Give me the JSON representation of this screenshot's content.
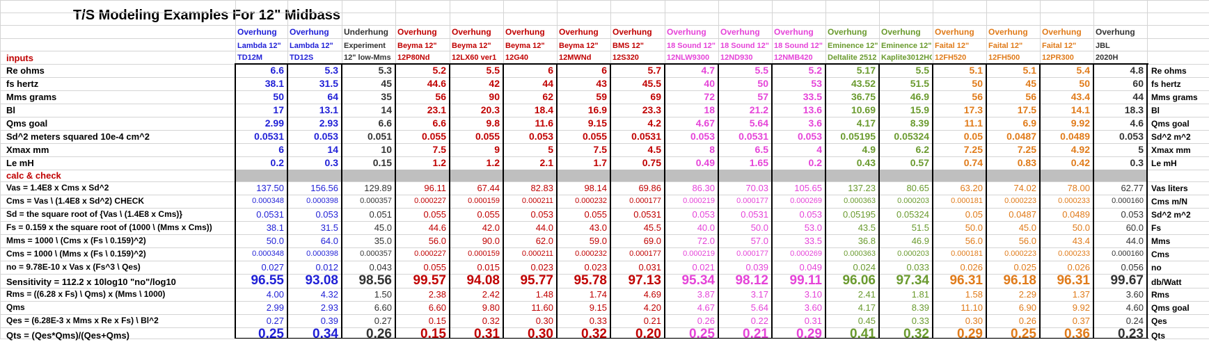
{
  "title": "T/S Modeling Examples For  12\" Midbass",
  "sections": {
    "inputs": "inputs",
    "calc": "calc  &  check"
  },
  "colors": {
    "blue": "#1f1fd6",
    "gray": "#333333",
    "red": "#c00000",
    "pink": "#e544d8",
    "olive": "#6a9a2e",
    "orange": "#e07b1a"
  },
  "columns": [
    {
      "type": "Overhung",
      "brand": "Lambda 12\"",
      "model": "TD12M",
      "color": "blue"
    },
    {
      "type": "Overhung",
      "brand": "Lambda 12\"",
      "model": "TD12S",
      "color": "blue"
    },
    {
      "type": "Underhung",
      "brand": "Experiment",
      "model": "12\"  low-Mms",
      "color": "gray"
    },
    {
      "type": "Overhung",
      "brand": "Beyma  12\"",
      "model": "12P80Nd",
      "color": "red"
    },
    {
      "type": "Overhung",
      "brand": "Beyma  12\"",
      "model": "12LX60 ver1",
      "color": "red"
    },
    {
      "type": "Overhung",
      "brand": "Beyma  12\"",
      "model": "12G40",
      "color": "red"
    },
    {
      "type": "Overhung",
      "brand": "Beyma  12\"",
      "model": "12MWNd",
      "color": "red"
    },
    {
      "type": "Overhung",
      "brand": "BMS 12\"",
      "model": "12S320",
      "color": "red"
    },
    {
      "type": "Overhung",
      "brand": "18 Sound 12\"",
      "model": "12NLW9300",
      "color": "pink"
    },
    {
      "type": "Overhung",
      "brand": "18 Sound 12\"",
      "model": "12ND930",
      "color": "pink"
    },
    {
      "type": "Overhung",
      "brand": "18 Sound 12\"",
      "model": "12NMB420",
      "color": "pink"
    },
    {
      "type": "Overhung",
      "brand": "Eminence 12\"",
      "model": "Deltalite 2512",
      "color": "olive"
    },
    {
      "type": "Overhung",
      "brand": "Eminence 12\"",
      "model": "Kaplite3012HC",
      "color": "olive"
    },
    {
      "type": "Overhung",
      "brand": "Faital 12\"",
      "model": "12FH520",
      "color": "orange"
    },
    {
      "type": "Overhung",
      "brand": "Faital 12\"",
      "model": "12FH500",
      "color": "orange"
    },
    {
      "type": "Overhung",
      "brand": "Faital 12\"",
      "model": "12PR300",
      "color": "orange"
    },
    {
      "type": "Overhung",
      "brand": "JBL",
      "model": "2020H",
      "color": "gray"
    }
  ],
  "input_rows": [
    {
      "label": "Re ohms",
      "right": "Re ohms",
      "values": [
        "6.6",
        "5.3",
        "5.3",
        "5.2",
        "5.5",
        "6",
        "6",
        "5.7",
        "4.7",
        "5.5",
        "5.2",
        "5.17",
        "5.5",
        "5.1",
        "5.1",
        "5.4",
        "4.8"
      ]
    },
    {
      "label": "fs   hertz",
      "right": "fs   hertz",
      "values": [
        "38.1",
        "31.5",
        "45",
        "44.6",
        "42",
        "44",
        "43",
        "45.5",
        "40",
        "50",
        "53",
        "43.52",
        "51.5",
        "50",
        "45",
        "50",
        "60"
      ]
    },
    {
      "label": "Mms  grams",
      "right": "Mms  grams",
      "values": [
        "50",
        "64",
        "35",
        "56",
        "90",
        "62",
        "59",
        "69",
        "72",
        "57",
        "33.5",
        "36.75",
        "46.9",
        "56",
        "56",
        "43.4",
        "44"
      ]
    },
    {
      "label": "Bl",
      "right": "Bl",
      "values": [
        "17",
        "13.1",
        "14",
        "23.1",
        "20.3",
        "18.4",
        "16.9",
        "23.3",
        "18",
        "21.2",
        "13.6",
        "10.69",
        "15.9",
        "17.3",
        "17.5",
        "14.1",
        "18.3"
      ]
    },
    {
      "label": "Qms goal",
      "right": "Qms goal",
      "values": [
        "2.99",
        "2.93",
        "6.6",
        "6.6",
        "9.8",
        "11.6",
        "9.15",
        "4.2",
        "4.67",
        "5.64",
        "3.6",
        "4.17",
        "8.39",
        "11.1",
        "6.9",
        "9.92",
        "4.6"
      ]
    },
    {
      "label": "Sd^2   meters squared 10e-4 cm^2",
      "right": "Sd^2   m^2",
      "values": [
        "0.0531",
        "0.053",
        "0.051",
        "0.055",
        "0.055",
        "0.053",
        "0.055",
        "0.0531",
        "0.053",
        "0.0531",
        "0.053",
        "0.05195",
        "0.05324",
        "0.05",
        "0.0487",
        "0.0489",
        "0.053"
      ]
    },
    {
      "label": "Xmax   mm",
      "right": "Xmax   mm",
      "values": [
        "6",
        "14",
        "10",
        "7.5",
        "9",
        "5",
        "7.5",
        "4.5",
        "8",
        "6.5",
        "4",
        "4.9",
        "6.2",
        "7.25",
        "7.25",
        "4.92",
        "5"
      ]
    },
    {
      "label": "Le  mH",
      "right": "Le mH",
      "values": [
        "0.2",
        "0.3",
        "0.15",
        "1.2",
        "1.2",
        "2.1",
        "1.7",
        "0.75",
        "0.49",
        "1.65",
        "0.2",
        "0.43",
        "0.57",
        "0.74",
        "0.83",
        "0.42",
        "0.3"
      ]
    }
  ],
  "calc_rows": [
    {
      "label": "Vas = 1.4E8 x Cms x Sd^2",
      "right": "Vas  liters",
      "big": false,
      "values": [
        "137.50",
        "156.56",
        "129.89",
        "96.11",
        "67.44",
        "82.83",
        "98.14",
        "69.86",
        "86.30",
        "70.03",
        "105.65",
        "137.23",
        "80.65",
        "63.20",
        "74.02",
        "78.00",
        "62.77"
      ]
    },
    {
      "label": "Cms = Vas \\ (1.4E8 x Sd^2)   CHECK",
      "right": "Cms  m/N",
      "big": false,
      "values": [
        "0.000348",
        "0.000398",
        "0.000357",
        "0.000227",
        "0.000159",
        "0.000211",
        "0.000232",
        "0.000177",
        "0.000219",
        "0.000177",
        "0.000269",
        "0.000363",
        "0.000203",
        "0.000181",
        "0.000223",
        "0.000233",
        "0.000160"
      ]
    },
    {
      "label": "Sd = the square root of {Vas \\ (1.4E8 x Cms)}",
      "right": "Sd^2   m^2",
      "big": false,
      "values": [
        "0.0531",
        "0.053",
        "0.051",
        "0.055",
        "0.055",
        "0.053",
        "0.055",
        "0.0531",
        "0.053",
        "0.0531",
        "0.053",
        "0.05195",
        "0.05324",
        "0.05",
        "0.0487",
        "0.0489",
        "0.053"
      ]
    },
    {
      "label": "Fs = 0.159 x the square root of (1000 \\ (Mms x Cms))",
      "right": "Fs",
      "big": false,
      "values": [
        "38.1",
        "31.5",
        "45.0",
        "44.6",
        "42.0",
        "44.0",
        "43.0",
        "45.5",
        "40.0",
        "50.0",
        "53.0",
        "43.5",
        "51.5",
        "50.0",
        "45.0",
        "50.0",
        "60.0"
      ]
    },
    {
      "label": "Mms = 1000 \\ (Cms x (Fs \\ 0.159)^2)",
      "right": "Mms",
      "big": false,
      "values": [
        "50.0",
        "64.0",
        "35.0",
        "56.0",
        "90.0",
        "62.0",
        "59.0",
        "69.0",
        "72.0",
        "57.0",
        "33.5",
        "36.8",
        "46.9",
        "56.0",
        "56.0",
        "43.4",
        "44.0"
      ]
    },
    {
      "label": "Cms = 1000 \\ (Mms x (Fs \\ 0.159)^2)",
      "right": "Cms",
      "big": false,
      "values": [
        "0.000348",
        "0.000398",
        "0.000357",
        "0.000227",
        "0.000159",
        "0.000211",
        "0.000232",
        "0.000177",
        "0.000219",
        "0.000177",
        "0.000269",
        "0.000363",
        "0.000203",
        "0.000181",
        "0.000223",
        "0.000233",
        "0.000160"
      ]
    },
    {
      "label": "no = 9.78E-10 x Vas x (Fs^3 \\ Qes)",
      "right": "no",
      "big": false,
      "values": [
        "0.027",
        "0.012",
        "0.043",
        "0.055",
        "0.015",
        "0.023",
        "0.023",
        "0.031",
        "0.021",
        "0.039",
        "0.049",
        "0.024",
        "0.033",
        "0.026",
        "0.025",
        "0.026",
        "0.056"
      ]
    },
    {
      "label": "Sensitivity = 112.2 x 10log10 \"no\"/log10",
      "right": "db/Watt",
      "big": true,
      "values": [
        "96.55",
        "93.08",
        "98.56",
        "99.57",
        "94.08",
        "95.77",
        "95.78",
        "97.13",
        "95.34",
        "98.12",
        "99.11",
        "96.06",
        "97.34",
        "96.31",
        "96.18",
        "96.31",
        "99.67"
      ]
    },
    {
      "label": "Rms = ((6.28 x Fs) \\ Qms) x (Mms \\ 1000)",
      "right": "Rms",
      "big": false,
      "values": [
        "4.00",
        "4.32",
        "1.50",
        "2.38",
        "2.42",
        "1.48",
        "1.74",
        "4.69",
        "3.87",
        "3.17",
        "3.10",
        "2.41",
        "1.81",
        "1.58",
        "2.29",
        "1.37",
        "3.60"
      ]
    },
    {
      "label": "Qms",
      "right": "Qms goal",
      "big": false,
      "values": [
        "2.99",
        "2.93",
        "6.60",
        "6.60",
        "9.80",
        "11.60",
        "9.15",
        "4.20",
        "4.67",
        "5.64",
        "3.60",
        "4.17",
        "8.39",
        "11.10",
        "6.90",
        "9.92",
        "4.60"
      ]
    },
    {
      "label": "Qes = (6.28E-3 x Mms x Re x Fs) \\ Bl^2",
      "right": "Qes",
      "big": false,
      "values": [
        "0.27",
        "0.39",
        "0.27",
        "0.15",
        "0.32",
        "0.30",
        "0.33",
        "0.21",
        "0.26",
        "0.22",
        "0.31",
        "0.45",
        "0.33",
        "0.30",
        "0.26",
        "0.37",
        "0.24"
      ]
    },
    {
      "label": "Qts = (Qes*Qms)/(Qes+Qms)",
      "right": "Qts",
      "big": true,
      "values": [
        "0.25",
        "0.34",
        "0.26",
        "0.15",
        "0.31",
        "0.30",
        "0.32",
        "0.20",
        "0.25",
        "0.21",
        "0.29",
        "0.41",
        "0.32",
        "0.29",
        "0.25",
        "0.36",
        "0.23"
      ]
    }
  ]
}
